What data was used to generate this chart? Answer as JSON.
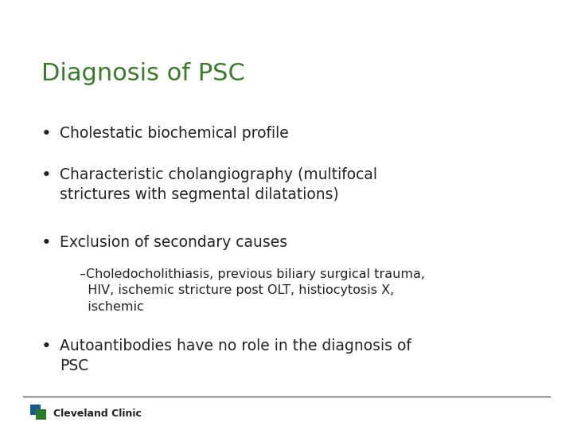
{
  "title": "Diagnosis of PSC",
  "title_color": "#3a7a2a",
  "title_fontsize": 22,
  "background_color": "#ffffff",
  "bullet_color": "#222222",
  "bullet_fontsize": 13.5,
  "sub_fontsize": 11.5,
  "footer_line_color": "#555555",
  "footer_text": "Cleveland Clinic",
  "footer_text_color": "#222222",
  "footer_fontsize": 9,
  "logo_blue": "#1a5a8a",
  "logo_green": "#2a7a2a",
  "bullets": [
    {
      "text": "Cholestatic biochemical profile",
      "indent": 0,
      "bullet": true
    },
    {
      "text": "Characteristic cholangiography (multifocal\nstrictures with segmental dilatations)",
      "indent": 0,
      "bullet": true
    },
    {
      "text": "Exclusion of secondary causes",
      "indent": 0,
      "bullet": true
    },
    {
      "text": "–Choledocholithiasis, previous biliary surgical trauma,\n  HIV, ischemic stricture post OLT, histiocytosis X,\n  ischemic",
      "indent": 1,
      "bullet": false
    },
    {
      "text": "Autoantibodies have no role in the diagnosis of\nPSC",
      "indent": 0,
      "bullet": true
    }
  ]
}
